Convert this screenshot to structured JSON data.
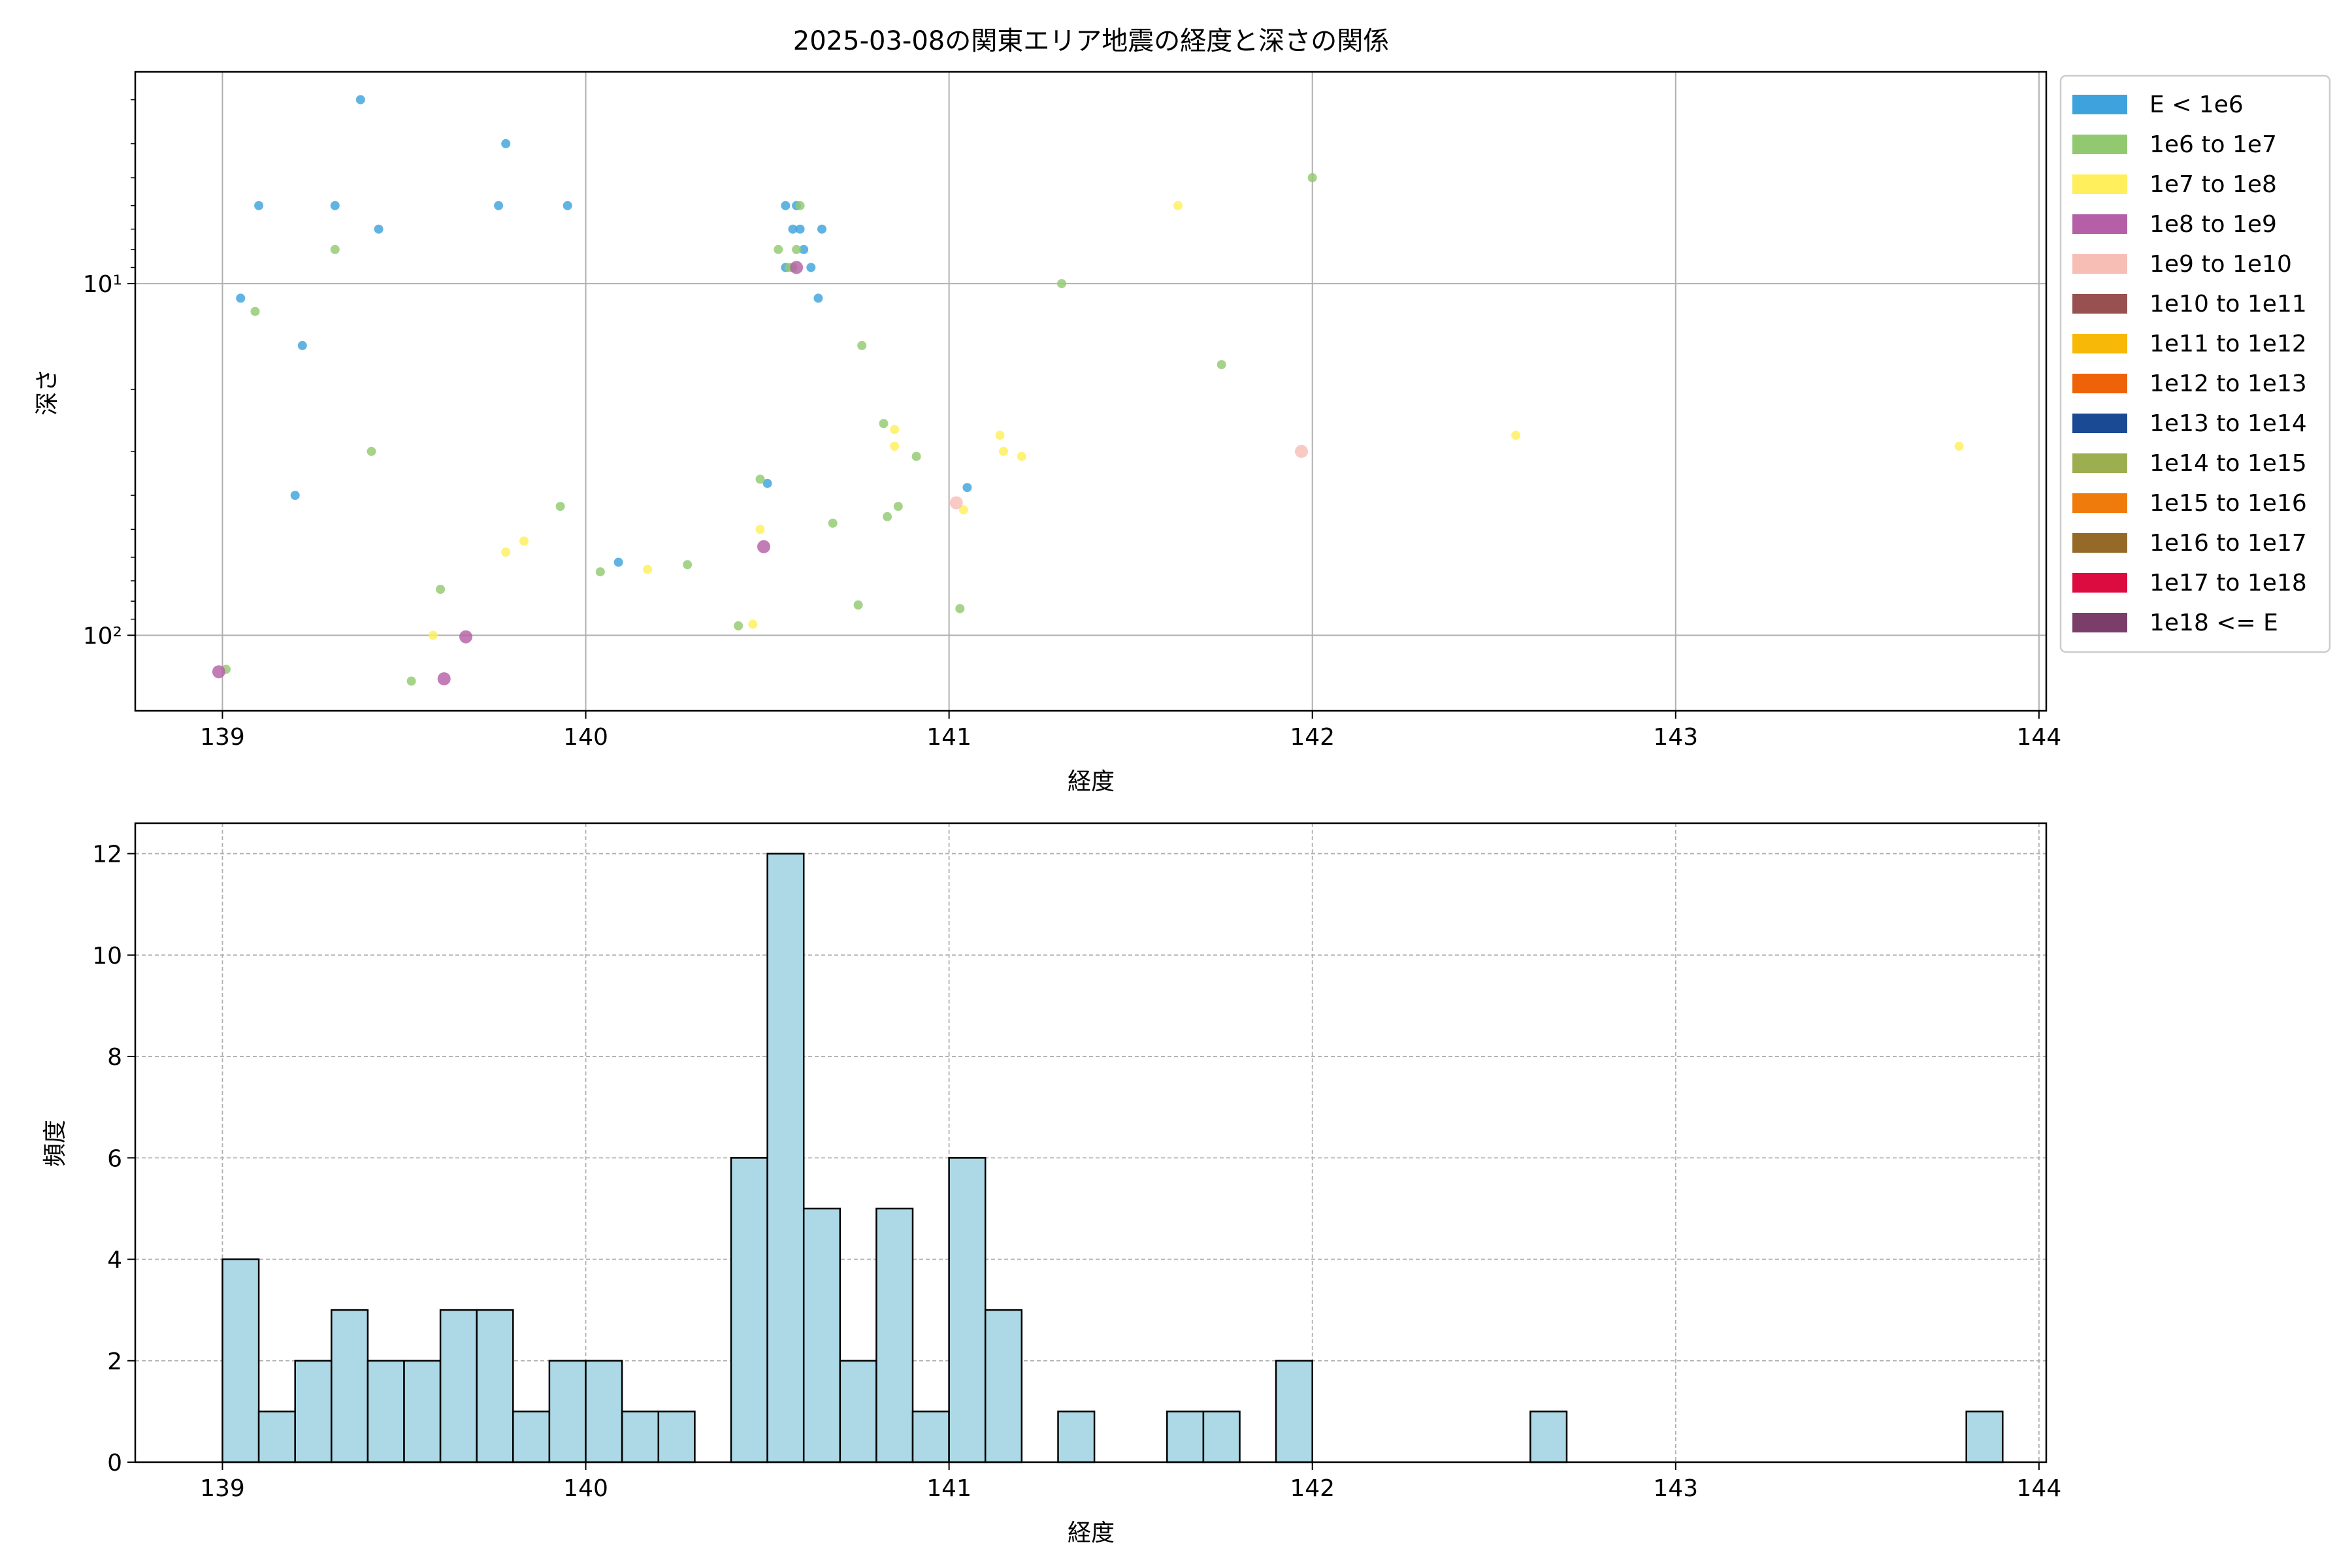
{
  "chart_data": [
    {
      "type": "scatter",
      "title": "2025-03-08の関東エリア地震の経度と深さの関係",
      "xlabel": "経度",
      "ylabel": "深さ",
      "xlim": [
        138.76,
        144.02
      ],
      "ylim": [
        2.5,
        164
      ],
      "y_scale": "log",
      "y_inverted": true,
      "grid": true,
      "x_ticks": [
        "139",
        "140",
        "141",
        "142",
        "143",
        "144"
      ],
      "y_ticks": [
        {
          "value": 10,
          "label": "10¹"
        },
        {
          "value": 100,
          "label": "10²"
        }
      ],
      "legend_position": "outside-right",
      "legend": [
        {
          "label": "E < 1e6",
          "color": "#3ea3dc"
        },
        {
          "label": "1e6 to 1e7",
          "color": "#92c970"
        },
        {
          "label": "1e7 to 1e8",
          "color": "#ffef5c"
        },
        {
          "label": "1e8 to 1e9",
          "color": "#b560a6"
        },
        {
          "label": "1e9 to 1e10",
          "color": "#f7beb6"
        },
        {
          "label": "1e10 to 1e11",
          "color": "#985150"
        },
        {
          "label": "1e11 to 1e12",
          "color": "#f8b808"
        },
        {
          "label": "1e12 to 1e13",
          "color": "#ee6209"
        },
        {
          "label": "1e13 to 1e14",
          "color": "#1b4a94"
        },
        {
          "label": "1e14 to 1e15",
          "color": "#9dae50"
        },
        {
          "label": "1e15 to 1e16",
          "color": "#ef7b0d"
        },
        {
          "label": "1e16 to 1e17",
          "color": "#956a28"
        },
        {
          "label": "1e17 to 1e18",
          "color": "#dc0b40"
        },
        {
          "label": "1e18 <= E",
          "color": "#7b3e6b"
        }
      ],
      "series": [
        {
          "class": 0,
          "points": [
            [
              139.05,
              11
            ],
            [
              139.1,
              6
            ],
            [
              139.2,
              40
            ],
            [
              139.22,
              15
            ],
            [
              139.31,
              6
            ],
            [
              139.38,
              3
            ],
            [
              139.43,
              7
            ],
            [
              139.76,
              6
            ],
            [
              139.78,
              4
            ],
            [
              139.95,
              6
            ],
            [
              140.09,
              62
            ],
            [
              140.5,
              37
            ],
            [
              140.55,
              6
            ],
            [
              140.57,
              7
            ],
            [
              140.59,
              7
            ],
            [
              140.58,
              6
            ],
            [
              140.55,
              9
            ],
            [
              140.6,
              8
            ],
            [
              140.62,
              9
            ],
            [
              140.64,
              11
            ],
            [
              140.65,
              7
            ],
            [
              141.05,
              38
            ]
          ]
        },
        {
          "class": 1,
          "points": [
            [
              139.01,
              125
            ],
            [
              139.09,
              12
            ],
            [
              139.31,
              8
            ],
            [
              139.41,
              30
            ],
            [
              139.52,
              135
            ],
            [
              139.6,
              74
            ],
            [
              139.93,
              43
            ],
            [
              140.04,
              66
            ],
            [
              140.28,
              63
            ],
            [
              140.42,
              94
            ],
            [
              140.48,
              36
            ],
            [
              140.53,
              8
            ],
            [
              140.56,
              9
            ],
            [
              140.58,
              8
            ],
            [
              140.57,
              9
            ],
            [
              140.59,
              6
            ],
            [
              140.68,
              48
            ],
            [
              140.75,
              82
            ],
            [
              140.76,
              15
            ],
            [
              140.82,
              25
            ],
            [
              140.83,
              46
            ],
            [
              140.86,
              43
            ],
            [
              140.91,
              31
            ],
            [
              141.03,
              84
            ],
            [
              141.31,
              10
            ],
            [
              141.75,
              17
            ],
            [
              142.0,
              5
            ]
          ]
        },
        {
          "class": 2,
          "points": [
            [
              139.58,
              100
            ],
            [
              139.78,
              58
            ],
            [
              139.83,
              54
            ],
            [
              140.17,
              65
            ],
            [
              140.46,
              93
            ],
            [
              140.48,
              50
            ],
            [
              140.85,
              26
            ],
            [
              140.85,
              29
            ],
            [
              141.04,
              44
            ],
            [
              141.14,
              27
            ],
            [
              141.15,
              30
            ],
            [
              141.2,
              31
            ],
            [
              141.63,
              6
            ],
            [
              142.56,
              27
            ],
            [
              143.78,
              29
            ]
          ]
        },
        {
          "class": 3,
          "points": [
            [
              138.99,
              127
            ],
            [
              139.61,
              133
            ],
            [
              139.67,
              101
            ],
            [
              140.49,
              56
            ],
            [
              140.58,
              9
            ]
          ]
        },
        {
          "class": 4,
          "points": [
            [
              141.02,
              42
            ],
            [
              141.97,
              30
            ]
          ]
        }
      ]
    },
    {
      "type": "bar",
      "title": "",
      "xlabel": "経度",
      "ylabel": "頻度",
      "xlim": [
        138.76,
        144.02
      ],
      "ylim": [
        0,
        12.6
      ],
      "grid": true,
      "x_ticks": [
        "139",
        "140",
        "141",
        "142",
        "143",
        "144"
      ],
      "y_ticks": [
        "0",
        "2",
        "4",
        "6",
        "8",
        "10",
        "12"
      ],
      "bar_color": "#add8e6",
      "bin_start": 139.0,
      "bin_width": 0.1,
      "values": [
        4,
        1,
        2,
        3,
        2,
        2,
        3,
        3,
        1,
        2,
        2,
        1,
        1,
        0,
        6,
        12,
        5,
        2,
        5,
        1,
        6,
        3,
        0,
        1,
        0,
        0,
        1,
        1,
        0,
        2,
        0,
        0,
        0,
        0,
        0,
        0,
        1,
        0,
        0,
        0,
        0,
        0,
        0,
        0,
        0,
        0,
        0,
        0,
        1
      ]
    }
  ]
}
